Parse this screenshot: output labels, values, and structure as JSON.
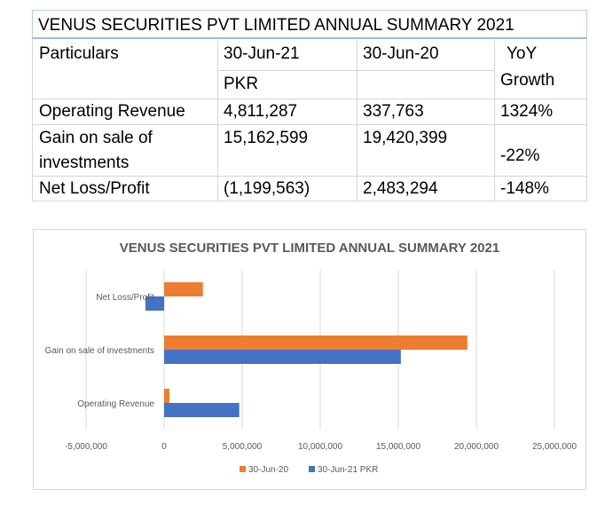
{
  "table": {
    "title": "VENUS SECURITIES PVT LIMITED ANNUAL SUMMARY 2021",
    "headers": {
      "particulars": "Particulars",
      "col1": "30-Jun-21",
      "col2": "30-Jun-20",
      "yoy_line1": "YoY",
      "yoy_line2": "Growth",
      "currency": "PKR"
    },
    "rows": [
      {
        "label": "Operating Revenue",
        "v2021": "4,811,287",
        "v2020": "337,763",
        "yoy": "1324%"
      },
      {
        "label_line1": "Gain on sale of",
        "label_line2": "investments",
        "v2021": "15,162,599",
        "v2020": "19,420,399",
        "yoy": "-22%"
      },
      {
        "label": "Net Loss/Profit",
        "v2021": "(1,199,563)",
        "v2020": "2,483,294",
        "yoy": "-148%"
      }
    ]
  },
  "chart_data": {
    "type": "bar",
    "orientation": "horizontal",
    "title": "VENUS SECURITIES PVT LIMITED ANNUAL SUMMARY 2021",
    "categories": [
      "Operating Revenue",
      "Gain on sale of investments",
      "Net Loss/Profit"
    ],
    "series": [
      {
        "name": "30-Jun-20",
        "color": "#ed7d31",
        "values": [
          337763,
          19420399,
          2483294
        ]
      },
      {
        "name": "30-Jun-21 PKR",
        "color": "#4472c4",
        "values": [
          4811287,
          15162599,
          -1199563
        ]
      }
    ],
    "xlim": [
      -5000000,
      25000000
    ],
    "xticks": [
      -5000000,
      0,
      5000000,
      10000000,
      15000000,
      20000000,
      25000000
    ],
    "xtick_labels": [
      "-5,000,000",
      "0",
      "5,000,000",
      "10,000,000",
      "15,000,000",
      "20,000,000",
      "25,000,000"
    ],
    "grid": true,
    "legend_position": "bottom"
  }
}
